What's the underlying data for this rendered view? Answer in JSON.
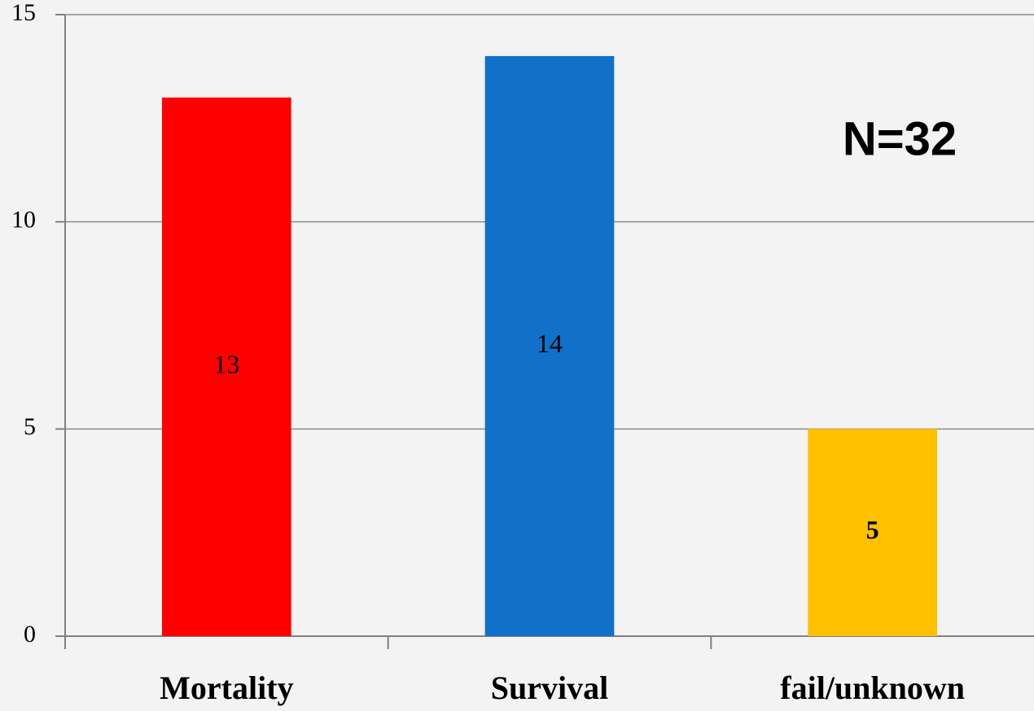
{
  "chart_data": {
    "type": "bar",
    "categories": [
      "Mortality",
      "Survival",
      "fail/unknown"
    ],
    "values": [
      13,
      14,
      5
    ],
    "colors": [
      "#ff0000",
      "#1170c8",
      "#ffc000"
    ],
    "ylim": [
      0,
      15
    ],
    "yticks": [
      0,
      5,
      10,
      15
    ],
    "grid": true,
    "annotation": "N=32"
  }
}
